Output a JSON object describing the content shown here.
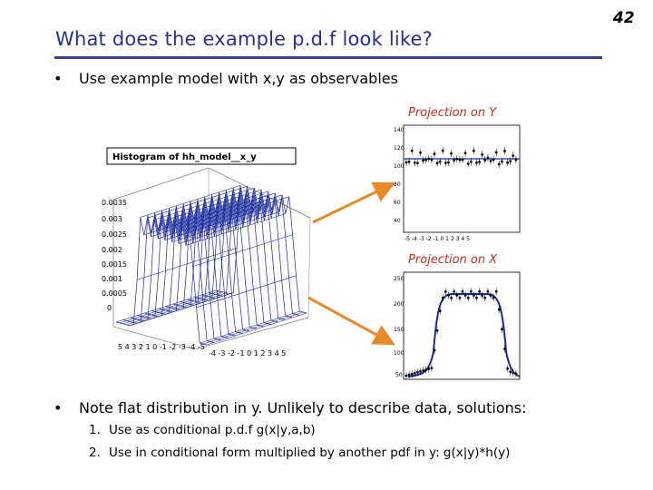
{
  "slide": {
    "page_number": "42",
    "title": "What does the example p.d.f look like?",
    "bullets": [
      "Use example model with x,y as observables",
      "Note flat distribution in y. Unlikely to describe data, solutions:"
    ],
    "bullet_marker": "•",
    "sub_items": [
      {
        "num": "1.",
        "text": "Use as conditional p.d.f g(x|y,a,b)"
      },
      {
        "num": "2.",
        "text": "Use in conditional form multiplied by another pdf in y: g(x|y)*h(y)"
      }
    ]
  },
  "figures": {
    "histogram_title": "Histogram of hh_model__x_y",
    "caption_y": "Projection on Y",
    "caption_x": "Projection on X",
    "arrow_color": "#e8892a",
    "surface_color": "#1b2a9a"
  }
}
